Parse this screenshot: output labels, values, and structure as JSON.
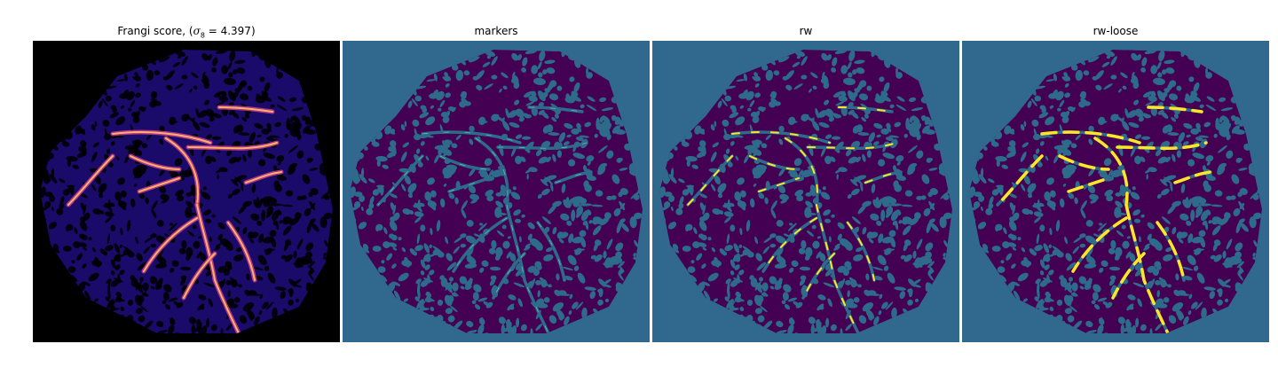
{
  "panels": [
    {
      "title_prefix": "Frangi score, (",
      "title_symbol": "σ",
      "title_subscript": "8",
      "title_suffix": " = 4.397)",
      "colormap": "magma",
      "background": "#000000"
    },
    {
      "title": "markers",
      "colormap": "viridis",
      "background": "#31688e"
    },
    {
      "title": "rw",
      "colormap": "viridis",
      "background": "#31688e"
    },
    {
      "title": "rw-loose",
      "colormap": "viridis",
      "background": "#31688e"
    }
  ],
  "colors": {
    "tissue_dark": "#440154",
    "tissue_pattern": "#2e6a8a",
    "highlight": "#fde725",
    "frangi_base": "#1a0b6b",
    "frangi_hot": "#fcb26b",
    "frangi_mid": "#d6418e"
  }
}
